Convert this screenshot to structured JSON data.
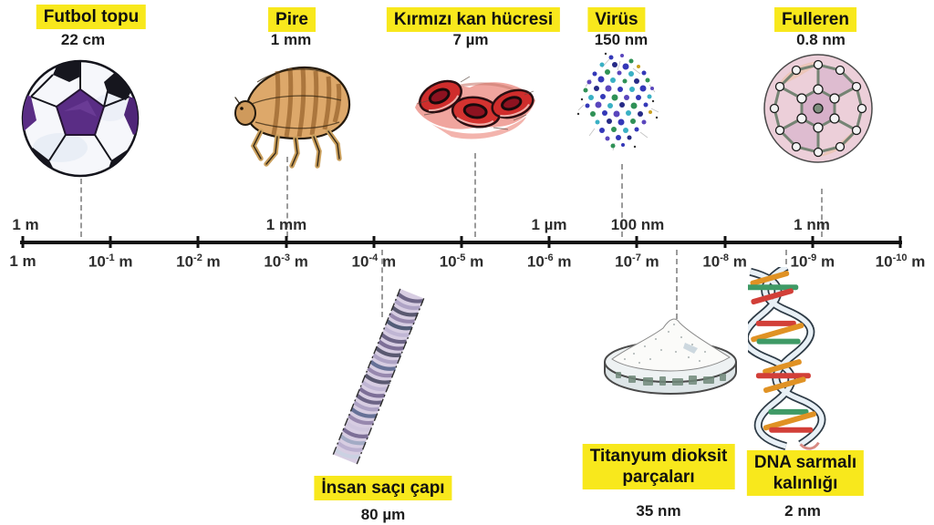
{
  "diagram": {
    "highlight_color": "#f8e81c",
    "top_items": [
      {
        "label": "Futbol topu",
        "size": "22 cm",
        "illustration": "soccer-ball"
      },
      {
        "label": "Pire",
        "size": "1 mm",
        "illustration": "flea"
      },
      {
        "label": "Kırmızı kan hücresi",
        "size": "7 µm",
        "illustration": "red-blood-cells"
      },
      {
        "label": "Virüs",
        "size": "150 nm",
        "illustration": "virus"
      },
      {
        "label": "Fulleren",
        "size": "0.8 nm",
        "illustration": "fullerene"
      }
    ],
    "bottom_items": [
      {
        "lines": [
          "İnsan saçı çapı"
        ],
        "size": "80 µm",
        "illustration": "human-hair"
      },
      {
        "lines": [
          "Titanyum dioksit",
          "parçaları"
        ],
        "size": "35 nm",
        "illustration": "titanium-dioxide-dish"
      },
      {
        "lines": [
          "DNA sarmalı",
          "kalınlığı"
        ],
        "size": "2 nm",
        "illustration": "dna-helix"
      }
    ],
    "axis": {
      "upper_labels": [
        "1 m",
        "1 mm",
        "1 µm",
        "100 nm",
        "1 nm"
      ],
      "ticks": [
        {
          "base": "1",
          "exp": "",
          "unit": "m"
        },
        {
          "base": "10",
          "exp": "-1",
          "unit": "m"
        },
        {
          "base": "10",
          "exp": "-2",
          "unit": "m"
        },
        {
          "base": "10",
          "exp": "-3",
          "unit": "m"
        },
        {
          "base": "10",
          "exp": "-4",
          "unit": "m"
        },
        {
          "base": "10",
          "exp": "-5",
          "unit": "m"
        },
        {
          "base": "10",
          "exp": "-6",
          "unit": "m"
        },
        {
          "base": "10",
          "exp": "-7",
          "unit": "m"
        },
        {
          "base": "10",
          "exp": "-8",
          "unit": "m"
        },
        {
          "base": "10",
          "exp": "-9",
          "unit": "m"
        },
        {
          "base": "10",
          "exp": "-10",
          "unit": "m"
        }
      ]
    }
  }
}
